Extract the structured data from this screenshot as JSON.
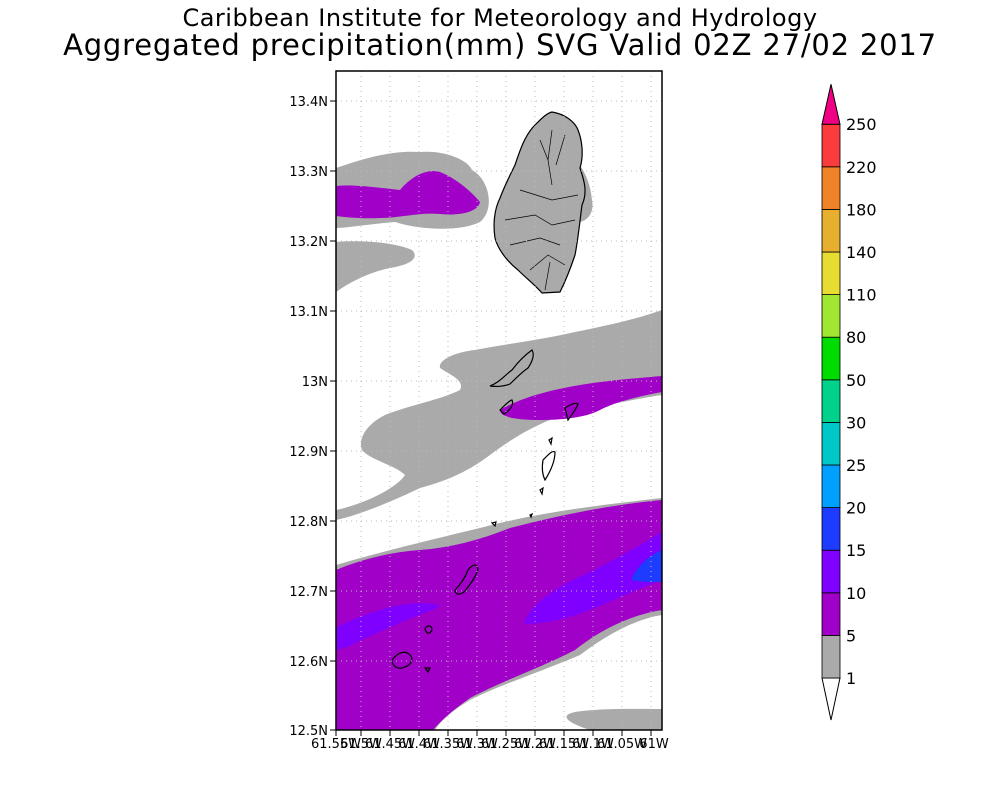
{
  "title": {
    "line1": "Caribbean Institute for Meteorology and Hydrology",
    "line2": "Aggregated precipitation(mm) SVG Valid 02Z 27/02 2017"
  },
  "map": {
    "lat_ticks": [
      "13.4N",
      "13.3N",
      "13.2N",
      "13.1N",
      "13N",
      "12.9N",
      "12.8N",
      "12.7N",
      "12.6N",
      "12.5N"
    ],
    "lon_ticks": [
      "61.55W",
      "61.5W",
      "61.45W",
      "61.4W",
      "61.35W",
      "61.3W",
      "61.25W",
      "61.2W",
      "61.15W",
      "61.1W",
      "61.05W",
      "61W"
    ]
  },
  "colorbar": {
    "levels": [
      "1",
      "5",
      "10",
      "15",
      "20",
      "25",
      "30",
      "50",
      "80",
      "110",
      "140",
      "180",
      "220",
      "250"
    ],
    "colors": [
      "#aaaaaa",
      "#a000c8",
      "#7f00ff",
      "#1e3cff",
      "#00a0ff",
      "#00c8c8",
      "#00d28c",
      "#00dc00",
      "#a0e632",
      "#e6dc32",
      "#e6af2d",
      "#f08228",
      "#fa3c3c",
      "#f00082"
    ]
  }
}
